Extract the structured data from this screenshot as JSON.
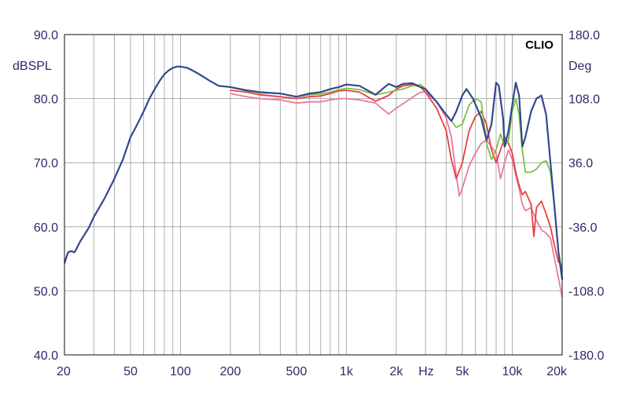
{
  "chart_data": {
    "type": "line",
    "brand": "CLIO",
    "xlabel": "Hz",
    "ylabel_left": "dBSPL",
    "ylabel_right": "Deg",
    "x_scale": "log",
    "xlim": [
      20,
      20000
    ],
    "ylim": [
      40,
      90
    ],
    "ylim_right": [
      -180,
      180
    ],
    "grid": true,
    "x_ticks": [
      {
        "value": 20,
        "label": "20"
      },
      {
        "value": 50,
        "label": "50"
      },
      {
        "value": 100,
        "label": "100"
      },
      {
        "value": 200,
        "label": "200"
      },
      {
        "value": 500,
        "label": "500"
      },
      {
        "value": 1000,
        "label": "1k"
      },
      {
        "value": 2000,
        "label": "2k"
      },
      {
        "value": 5000,
        "label": "5k"
      },
      {
        "value": 10000,
        "label": "10k"
      },
      {
        "value": 20000,
        "label": "20k"
      }
    ],
    "y_ticks_left": [
      {
        "value": 90,
        "label": "90.0"
      },
      {
        "value": 80,
        "label": "80.0"
      },
      {
        "value": 70,
        "label": "70.0"
      },
      {
        "value": 60,
        "label": "60.0"
      },
      {
        "value": 50,
        "label": "50.0"
      },
      {
        "value": 40,
        "label": "40.0"
      }
    ],
    "y_ticks_right": [
      {
        "value": 180,
        "label": "180.0"
      },
      {
        "value": 108,
        "label": "108.0"
      },
      {
        "value": 36,
        "label": "36.0"
      },
      {
        "value": -36,
        "label": "-36.0"
      },
      {
        "value": -108,
        "label": "-108.0"
      },
      {
        "value": -180,
        "label": "-180.0"
      }
    ],
    "series": [
      {
        "color": "#e87a9e",
        "points": [
          [
            200,
            80.8
          ],
          [
            250,
            80.3
          ],
          [
            300,
            80.0
          ],
          [
            400,
            79.8
          ],
          [
            500,
            79.3
          ],
          [
            600,
            79.5
          ],
          [
            700,
            79.5
          ],
          [
            800,
            79.8
          ],
          [
            900,
            80.0
          ],
          [
            1000,
            80.0
          ],
          [
            1200,
            79.8
          ],
          [
            1500,
            79.3
          ],
          [
            1800,
            77.6
          ],
          [
            2000,
            78.5
          ],
          [
            2200,
            79.2
          ],
          [
            2500,
            80.2
          ],
          [
            2800,
            81.0
          ],
          [
            3000,
            81.0
          ],
          [
            3500,
            79.5
          ],
          [
            4000,
            77.0
          ],
          [
            4300,
            74.0
          ],
          [
            4600,
            68.0
          ],
          [
            4800,
            64.8
          ],
          [
            5000,
            66.0
          ],
          [
            5500,
            69.5
          ],
          [
            6000,
            71.5
          ],
          [
            6500,
            73.0
          ],
          [
            7000,
            73.5
          ],
          [
            7500,
            72.5
          ],
          [
            8000,
            71.5
          ],
          [
            8500,
            67.5
          ],
          [
            9000,
            70.0
          ],
          [
            9500,
            72.0
          ],
          [
            10000,
            70.5
          ],
          [
            10500,
            68.0
          ],
          [
            11000,
            66.0
          ],
          [
            11500,
            63.5
          ],
          [
            12000,
            62.5
          ],
          [
            13000,
            63.0
          ],
          [
            14000,
            61.0
          ],
          [
            15000,
            59.5
          ],
          [
            16000,
            59.0
          ],
          [
            17000,
            58.2
          ],
          [
            18000,
            55.0
          ],
          [
            19000,
            52.0
          ],
          [
            20000,
            49.0
          ]
        ]
      },
      {
        "color": "#e84040",
        "points": [
          [
            200,
            81.3
          ],
          [
            250,
            81.0
          ],
          [
            300,
            80.6
          ],
          [
            400,
            80.3
          ],
          [
            500,
            80.0
          ],
          [
            600,
            80.3
          ],
          [
            700,
            80.4
          ],
          [
            800,
            80.8
          ],
          [
            900,
            81.2
          ],
          [
            1000,
            81.3
          ],
          [
            1200,
            81.0
          ],
          [
            1500,
            79.6
          ],
          [
            1800,
            80.5
          ],
          [
            2000,
            81.5
          ],
          [
            2200,
            82.0
          ],
          [
            2500,
            82.2
          ],
          [
            2800,
            81.8
          ],
          [
            3000,
            81.0
          ],
          [
            3500,
            78.5
          ],
          [
            4000,
            75.0
          ],
          [
            4300,
            70.5
          ],
          [
            4600,
            67.5
          ],
          [
            5000,
            70.0
          ],
          [
            5500,
            75.0
          ],
          [
            6000,
            77.2
          ],
          [
            6500,
            78.0
          ],
          [
            7000,
            76.0
          ],
          [
            7500,
            72.0
          ],
          [
            8000,
            70.0
          ],
          [
            8500,
            72.0
          ],
          [
            9000,
            74.0
          ],
          [
            9500,
            73.0
          ],
          [
            10000,
            71.5
          ],
          [
            10500,
            68.5
          ],
          [
            11000,
            66.5
          ],
          [
            11500,
            65.0
          ],
          [
            12000,
            65.5
          ],
          [
            13000,
            63.5
          ],
          [
            13500,
            58.5
          ],
          [
            14000,
            63.0
          ],
          [
            15000,
            64.0
          ],
          [
            16000,
            62.0
          ],
          [
            17000,
            60.0
          ],
          [
            18000,
            57.0
          ],
          [
            19000,
            54.5
          ],
          [
            20000,
            54.0
          ]
        ]
      },
      {
        "color": "#7cc242",
        "points": [
          [
            200,
            81.8
          ],
          [
            250,
            81.2
          ],
          [
            300,
            80.9
          ],
          [
            400,
            80.8
          ],
          [
            500,
            80.3
          ],
          [
            600,
            80.6
          ],
          [
            700,
            80.7
          ],
          [
            800,
            81.0
          ],
          [
            900,
            81.4
          ],
          [
            1000,
            81.6
          ],
          [
            1200,
            81.4
          ],
          [
            1500,
            80.6
          ],
          [
            1800,
            81.0
          ],
          [
            2000,
            81.3
          ],
          [
            2200,
            81.5
          ],
          [
            2500,
            82.0
          ],
          [
            2800,
            82.2
          ],
          [
            3000,
            81.5
          ],
          [
            3500,
            79.5
          ],
          [
            4000,
            77.5
          ],
          [
            4300,
            76.5
          ],
          [
            4600,
            75.5
          ],
          [
            5000,
            76.0
          ],
          [
            5500,
            79.0
          ],
          [
            6000,
            80.0
          ],
          [
            6500,
            79.5
          ],
          [
            7000,
            73.0
          ],
          [
            7500,
            70.5
          ],
          [
            8000,
            72.0
          ],
          [
            8500,
            74.5
          ],
          [
            9000,
            72.5
          ],
          [
            9500,
            73.5
          ],
          [
            10000,
            78.0
          ],
          [
            10500,
            80.0
          ],
          [
            11000,
            77.5
          ],
          [
            11500,
            72.0
          ],
          [
            12000,
            68.5
          ],
          [
            13000,
            68.5
          ],
          [
            14000,
            69.0
          ],
          [
            15000,
            70.0
          ],
          [
            16000,
            70.3
          ],
          [
            17000,
            68.5
          ],
          [
            18000,
            63.0
          ],
          [
            19000,
            56.0
          ],
          [
            20000,
            53.0
          ]
        ]
      },
      {
        "color": "#34488e",
        "points": [
          [
            20,
            54.3
          ],
          [
            21,
            56.0
          ],
          [
            22,
            56.2
          ],
          [
            23,
            56.0
          ],
          [
            25,
            57.8
          ],
          [
            28,
            59.8
          ],
          [
            30,
            61.5
          ],
          [
            35,
            64.5
          ],
          [
            40,
            67.5
          ],
          [
            45,
            70.5
          ],
          [
            50,
            74.0
          ],
          [
            55,
            76.0
          ],
          [
            60,
            78.0
          ],
          [
            65,
            80.0
          ],
          [
            70,
            81.5
          ],
          [
            75,
            82.8
          ],
          [
            80,
            83.8
          ],
          [
            85,
            84.4
          ],
          [
            90,
            84.8
          ],
          [
            95,
            85.0
          ],
          [
            100,
            85.0
          ],
          [
            110,
            84.8
          ],
          [
            120,
            84.3
          ],
          [
            130,
            83.8
          ],
          [
            150,
            82.8
          ],
          [
            170,
            82.0
          ],
          [
            200,
            81.8
          ],
          [
            250,
            81.3
          ],
          [
            300,
            81.0
          ],
          [
            350,
            80.9
          ],
          [
            400,
            80.8
          ],
          [
            500,
            80.3
          ],
          [
            600,
            80.8
          ],
          [
            700,
            81.0
          ],
          [
            800,
            81.5
          ],
          [
            900,
            81.8
          ],
          [
            1000,
            82.2
          ],
          [
            1200,
            82.0
          ],
          [
            1500,
            80.6
          ],
          [
            1800,
            82.3
          ],
          [
            2000,
            81.8
          ],
          [
            2200,
            82.3
          ],
          [
            2500,
            82.4
          ],
          [
            2800,
            81.8
          ],
          [
            3000,
            81.5
          ],
          [
            3500,
            79.5
          ],
          [
            4000,
            77.5
          ],
          [
            4300,
            76.5
          ],
          [
            4600,
            78.0
          ],
          [
            5000,
            80.5
          ],
          [
            5300,
            81.5
          ],
          [
            5800,
            80.0
          ],
          [
            6500,
            77.0
          ],
          [
            7000,
            73.5
          ],
          [
            7500,
            76.0
          ],
          [
            7800,
            80.0
          ],
          [
            8000,
            82.5
          ],
          [
            8300,
            82.0
          ],
          [
            8800,
            77.0
          ],
          [
            9000,
            72.5
          ],
          [
            9500,
            75.0
          ],
          [
            10000,
            79.0
          ],
          [
            10500,
            82.5
          ],
          [
            11000,
            80.5
          ],
          [
            11500,
            72.5
          ],
          [
            12000,
            74.0
          ],
          [
            13000,
            78.0
          ],
          [
            14000,
            80.0
          ],
          [
            15000,
            80.5
          ],
          [
            16000,
            77.5
          ],
          [
            17000,
            70.0
          ],
          [
            18000,
            63.0
          ],
          [
            19000,
            56.0
          ],
          [
            20000,
            51.8
          ]
        ]
      }
    ]
  }
}
